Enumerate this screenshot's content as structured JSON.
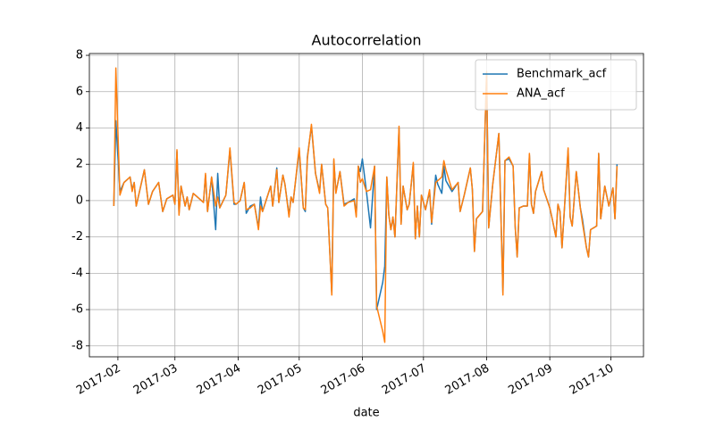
{
  "chart_data": {
    "type": "line",
    "title": "Autocorrelation",
    "x_label": "date",
    "grid": true,
    "legend": "upper right",
    "xlim": [
      "2017-01-18",
      "2017-10-17"
    ],
    "ylim": [
      -8.6,
      8.1
    ],
    "xticks": [
      {
        "value": "2017-02-01",
        "label": "2017-02"
      },
      {
        "value": "2017-03-01",
        "label": "2017-03"
      },
      {
        "value": "2017-04-01",
        "label": "2017-04"
      },
      {
        "value": "2017-05-01",
        "label": "2017-05"
      },
      {
        "value": "2017-06-01",
        "label": "2017-06"
      },
      {
        "value": "2017-07-01",
        "label": "2017-07"
      },
      {
        "value": "2017-08-01",
        "label": "2017-08"
      },
      {
        "value": "2017-09-01",
        "label": "2017-09"
      },
      {
        "value": "2017-10-01",
        "label": "2017-10"
      }
    ],
    "yticks": [
      -8,
      -6,
      -4,
      -2,
      0,
      2,
      4,
      6,
      8
    ],
    "x": [
      "2017-01-30",
      "2017-01-31",
      "2017-02-02",
      "2017-02-04",
      "2017-02-07",
      "2017-02-08",
      "2017-02-09",
      "2017-02-10",
      "2017-02-14",
      "2017-02-16",
      "2017-02-18",
      "2017-02-21",
      "2017-02-23",
      "2017-02-25",
      "2017-02-28",
      "2017-03-01",
      "2017-03-02",
      "2017-03-03",
      "2017-03-04",
      "2017-03-06",
      "2017-03-07",
      "2017-03-08",
      "2017-03-10",
      "2017-03-13",
      "2017-03-15",
      "2017-03-16",
      "2017-03-17",
      "2017-03-19",
      "2017-03-21",
      "2017-03-22",
      "2017-03-23",
      "2017-03-26",
      "2017-03-28",
      "2017-03-30",
      "2017-03-31",
      "2017-04-02",
      "2017-04-04",
      "2017-04-05",
      "2017-04-07",
      "2017-04-09",
      "2017-04-11",
      "2017-04-12",
      "2017-04-13",
      "2017-04-17",
      "2017-04-18",
      "2017-04-20",
      "2017-04-21",
      "2017-04-23",
      "2017-04-24",
      "2017-04-26",
      "2017-04-27",
      "2017-04-28",
      "2017-05-01",
      "2017-05-03",
      "2017-05-04",
      "2017-05-05",
      "2017-05-07",
      "2017-05-09",
      "2017-05-11",
      "2017-05-12",
      "2017-05-14",
      "2017-05-15",
      "2017-05-17",
      "2017-05-18",
      "2017-05-19",
      "2017-05-20",
      "2017-05-21",
      "2017-05-23",
      "2017-05-25",
      "2017-05-28",
      "2017-05-29",
      "2017-05-30",
      "2017-05-31",
      "2017-06-01",
      "2017-06-03",
      "2017-06-05",
      "2017-06-07",
      "2017-06-08",
      "2017-06-11",
      "2017-06-12",
      "2017-06-13",
      "2017-06-14",
      "2017-06-15",
      "2017-06-16",
      "2017-06-17",
      "2017-06-19",
      "2017-06-20",
      "2017-06-21",
      "2017-06-23",
      "2017-06-24",
      "2017-06-26",
      "2017-06-27",
      "2017-06-28",
      "2017-06-29",
      "2017-06-30",
      "2017-07-01",
      "2017-07-02",
      "2017-07-04",
      "2017-07-05",
      "2017-07-07",
      "2017-07-08",
      "2017-07-10",
      "2017-07-11",
      "2017-07-12",
      "2017-07-15",
      "2017-07-18",
      "2017-07-19",
      "2017-07-21",
      "2017-07-24",
      "2017-07-25",
      "2017-07-26",
      "2017-07-27",
      "2017-07-30",
      "2017-08-01",
      "2017-08-02",
      "2017-08-04",
      "2017-08-07",
      "2017-08-09",
      "2017-08-10",
      "2017-08-12",
      "2017-08-14",
      "2017-08-15",
      "2017-08-16",
      "2017-08-17",
      "2017-08-19",
      "2017-08-21",
      "2017-08-22",
      "2017-08-23",
      "2017-08-24",
      "2017-08-25",
      "2017-08-28",
      "2017-08-29",
      "2017-09-01",
      "2017-09-02",
      "2017-09-04",
      "2017-09-05",
      "2017-09-06",
      "2017-09-07",
      "2017-09-10",
      "2017-09-11",
      "2017-09-12",
      "2017-09-14",
      "2017-09-16",
      "2017-09-17",
      "2017-09-19",
      "2017-09-20",
      "2017-09-21",
      "2017-09-24",
      "2017-09-25",
      "2017-09-26",
      "2017-09-28",
      "2017-09-30",
      "2017-10-02",
      "2017-10-03",
      "2017-10-04"
    ],
    "series": [
      {
        "name": "Benchmark_acf",
        "color": "#1f77b4",
        "values": [
          -0.3,
          4.4,
          0.5,
          1.0,
          1.3,
          0.6,
          1.0,
          -0.3,
          1.7,
          -0.2,
          0.5,
          1.0,
          -0.6,
          0.1,
          0.3,
          -0.2,
          2.7,
          -0.7,
          0.8,
          -0.3,
          0.2,
          -0.5,
          0.4,
          0.1,
          -0.1,
          1.4,
          -0.6,
          1.3,
          -1.6,
          1.5,
          -0.4,
          0.3,
          2.8,
          -0.2,
          -0.2,
          0.0,
          1.0,
          -0.7,
          -0.3,
          -0.2,
          -1.5,
          0.2,
          -0.6,
          0.8,
          -0.3,
          1.8,
          -0.1,
          1.4,
          0.9,
          -0.8,
          0.2,
          -0.1,
          2.8,
          -0.4,
          -0.6,
          2.4,
          4.1,
          1.5,
          0.5,
          2.0,
          -0.2,
          -0.4,
          -5.1,
          2.2,
          0.5,
          1.0,
          1.6,
          -0.2,
          -0.1,
          0.1,
          -0.8,
          1.9,
          1.6,
          2.3,
          0.5,
          -1.5,
          1.9,
          -6.0,
          -4.5,
          -3.6,
          1.3,
          -0.8,
          -1.6,
          -0.9,
          -2.0,
          4.0,
          -1.3,
          0.8,
          -0.5,
          -0.2,
          2.0,
          -2.1,
          -0.3,
          -2.0,
          0.3,
          -0.1,
          -0.5,
          0.5,
          -1.3,
          1.4,
          0.9,
          0.4,
          1.9,
          1.1,
          0.5,
          1.0,
          -0.6,
          0.3,
          1.8,
          0.6,
          -2.8,
          -1.0,
          -0.6,
          7.0,
          -1.5,
          0.9,
          3.7,
          -5.1,
          2.2,
          2.3,
          1.9,
          -1.4,
          -3.1,
          -0.4,
          -0.3,
          -0.3,
          2.5,
          -0.2,
          -0.7,
          0.5,
          1.6,
          0.6,
          -0.4,
          -0.9,
          -2.0,
          -0.2,
          -0.6,
          -2.6,
          2.8,
          -0.9,
          -1.4,
          1.6,
          -0.4,
          -1.0,
          -2.6,
          -3.1,
          -1.6,
          -1.4,
          2.6,
          -1.0,
          0.8,
          -0.3,
          0.7,
          -1.0,
          2.0
        ]
      },
      {
        "name": "ANA_acf",
        "color": "#ff7f0e",
        "values": [
          -0.3,
          7.3,
          0.3,
          1.0,
          1.3,
          0.5,
          1.0,
          -0.3,
          1.7,
          -0.2,
          0.5,
          1.0,
          -0.6,
          0.1,
          0.3,
          -0.2,
          2.8,
          -0.8,
          0.8,
          -0.3,
          0.2,
          -0.5,
          0.4,
          0.1,
          -0.1,
          1.5,
          -0.6,
          1.3,
          -0.3,
          0.2,
          -0.4,
          0.3,
          2.9,
          -0.1,
          -0.2,
          0.0,
          1.0,
          -0.5,
          -0.4,
          -0.2,
          -1.6,
          -0.3,
          -0.6,
          0.8,
          -0.3,
          1.7,
          -0.1,
          1.4,
          0.9,
          -0.9,
          0.2,
          -0.1,
          2.9,
          -0.4,
          -0.5,
          2.3,
          4.2,
          1.5,
          0.4,
          2.0,
          -0.2,
          -0.4,
          -5.2,
          2.3,
          0.4,
          1.0,
          1.6,
          -0.3,
          -0.1,
          0.0,
          -0.9,
          1.9,
          1.0,
          1.2,
          0.5,
          0.6,
          1.9,
          -5.8,
          -7.2,
          -7.8,
          1.3,
          -0.8,
          -1.6,
          -0.9,
          -2.0,
          4.1,
          -1.3,
          0.8,
          -0.5,
          -0.2,
          2.1,
          -2.1,
          -0.3,
          -2.0,
          0.3,
          -0.1,
          -0.5,
          0.6,
          -1.2,
          1.0,
          1.1,
          1.3,
          2.2,
          1.7,
          0.6,
          1.0,
          -0.6,
          0.3,
          1.8,
          0.6,
          -2.8,
          -1.0,
          -0.6,
          7.1,
          -1.5,
          0.9,
          3.7,
          -5.2,
          2.2,
          2.4,
          1.9,
          -1.4,
          -3.1,
          -0.4,
          -0.3,
          -0.3,
          2.6,
          -0.2,
          -0.7,
          0.5,
          1.6,
          0.6,
          -0.4,
          -0.9,
          -2.0,
          -0.2,
          -0.6,
          -2.6,
          2.9,
          -0.9,
          -1.4,
          1.6,
          -0.4,
          -1.2,
          -2.6,
          -3.1,
          -1.6,
          -1.4,
          2.6,
          -1.0,
          0.8,
          -0.3,
          0.7,
          -1.0,
          1.9
        ]
      }
    ]
  }
}
